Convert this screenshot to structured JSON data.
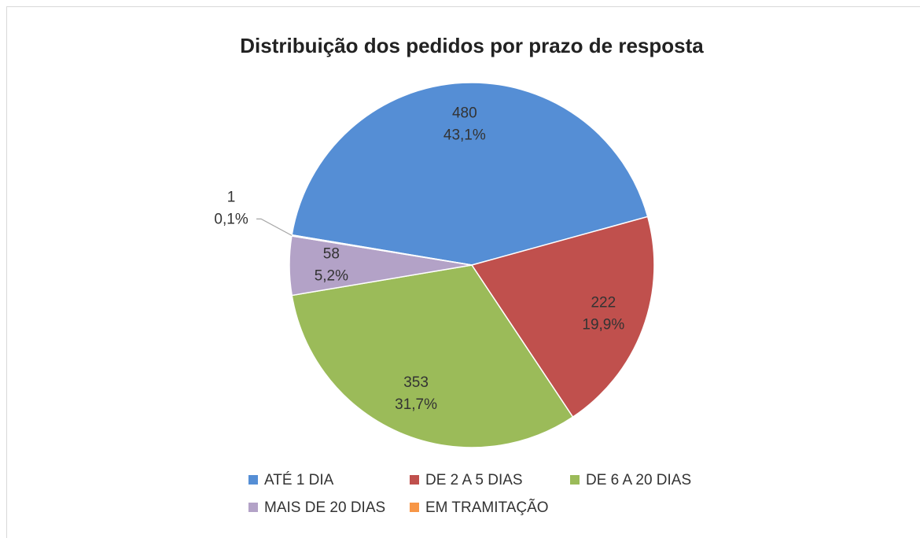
{
  "chart_data": {
    "type": "pie",
    "title": "Distribuição dos pedidos por prazo de resposta",
    "categories": [
      "ATÉ 1 DIA",
      "DE 2 A 5 DIAS",
      "DE 6 A 20 DIAS",
      "MAIS DE 20 DIAS",
      "EM TRAMITAÇÃO"
    ],
    "values": [
      480,
      222,
      353,
      58,
      1
    ],
    "percentages": [
      43.1,
      19.9,
      31.7,
      5.2,
      0.1
    ],
    "percentage_labels": [
      "43,1%",
      "19,9%",
      "31,7%",
      "5,2%",
      "0,1%"
    ],
    "colors": [
      "#558ed5",
      "#c0504d",
      "#9bbb59",
      "#b3a2c7",
      "#f79646"
    ],
    "legend": "bottom"
  }
}
